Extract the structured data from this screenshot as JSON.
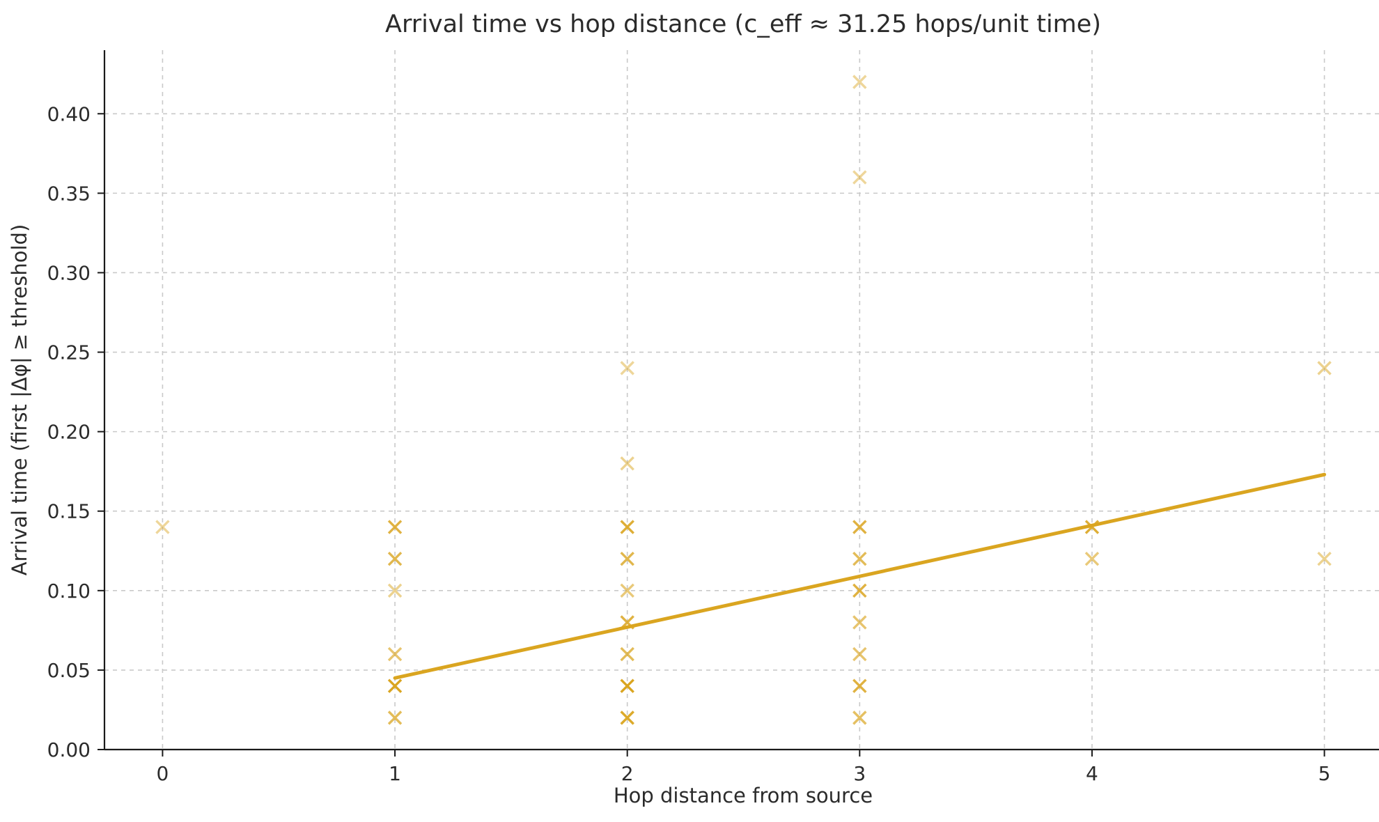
{
  "chart_data": {
    "type": "scatter",
    "title": "Arrival time vs hop distance  (c_eff ≈ 31.25 hops/unit time)",
    "xlabel": "Hop distance from source",
    "ylabel": "Arrival time (first |Δφ| ≥ threshold)",
    "xlim": [
      -0.25,
      5.25
    ],
    "ylim": [
      0,
      0.44
    ],
    "xticks": [
      0,
      1,
      2,
      3,
      4,
      5
    ],
    "xtick_labels": [
      "0",
      "1",
      "2",
      "3",
      "4",
      "5"
    ],
    "yticks": [
      0,
      0.05,
      0.1,
      0.15,
      0.2,
      0.25,
      0.3,
      0.35,
      0.4
    ],
    "ytick_labels": [
      "0.00",
      "0.05",
      "0.10",
      "0.15",
      "0.20",
      "0.25",
      "0.30",
      "0.35",
      "0.40"
    ],
    "grid": true,
    "legend": "none",
    "marker": "x",
    "colors": {
      "marker": "#DAA520",
      "fit_line": "#DAA520",
      "grid": "#c9c9c9",
      "axis": "#1a1a1a",
      "text": "#2b2b2b"
    },
    "points": [
      {
        "x": 0,
        "y": 0.14,
        "alpha": 0.45
      },
      {
        "x": 1,
        "y": 0.14,
        "alpha": 0.85
      },
      {
        "x": 1,
        "y": 0.12,
        "alpha": 0.8
      },
      {
        "x": 1,
        "y": 0.1,
        "alpha": 0.5
      },
      {
        "x": 1,
        "y": 0.06,
        "alpha": 0.65
      },
      {
        "x": 1,
        "y": 0.04,
        "alpha": 1.0
      },
      {
        "x": 1,
        "y": 0.02,
        "alpha": 0.75
      },
      {
        "x": 2,
        "y": 0.24,
        "alpha": 0.45
      },
      {
        "x": 2,
        "y": 0.18,
        "alpha": 0.5
      },
      {
        "x": 2,
        "y": 0.14,
        "alpha": 0.9
      },
      {
        "x": 2,
        "y": 0.12,
        "alpha": 0.8
      },
      {
        "x": 2,
        "y": 0.1,
        "alpha": 0.6
      },
      {
        "x": 2,
        "y": 0.08,
        "alpha": 0.85
      },
      {
        "x": 2,
        "y": 0.06,
        "alpha": 0.75
      },
      {
        "x": 2,
        "y": 0.04,
        "alpha": 1.0
      },
      {
        "x": 2,
        "y": 0.02,
        "alpha": 0.95
      },
      {
        "x": 3,
        "y": 0.42,
        "alpha": 0.45
      },
      {
        "x": 3,
        "y": 0.36,
        "alpha": 0.45
      },
      {
        "x": 3,
        "y": 0.14,
        "alpha": 0.85
      },
      {
        "x": 3,
        "y": 0.12,
        "alpha": 0.75
      },
      {
        "x": 3,
        "y": 0.1,
        "alpha": 0.85
      },
      {
        "x": 3,
        "y": 0.08,
        "alpha": 0.65
      },
      {
        "x": 3,
        "y": 0.06,
        "alpha": 0.65
      },
      {
        "x": 3,
        "y": 0.04,
        "alpha": 0.85
      },
      {
        "x": 3,
        "y": 0.02,
        "alpha": 0.7
      },
      {
        "x": 4,
        "y": 0.14,
        "alpha": 0.9
      },
      {
        "x": 4,
        "y": 0.12,
        "alpha": 0.6
      },
      {
        "x": 5,
        "y": 0.24,
        "alpha": 0.5
      },
      {
        "x": 5,
        "y": 0.12,
        "alpha": 0.5
      }
    ],
    "fit_line": {
      "x_start": 1,
      "x_end": 5,
      "slope": 0.032,
      "intercept": 0.013,
      "c_eff_hops_per_unit_time": 31.25
    }
  }
}
